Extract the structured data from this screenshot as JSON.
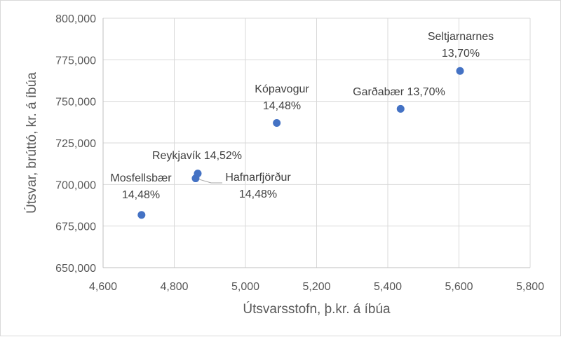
{
  "chart_data": {
    "type": "scatter",
    "xlabel": "Útsvarsstofn, þ.kr. á íbúa",
    "ylabel": "Útsvar, brúttó, kr. á íbúa",
    "xlim": [
      4600,
      5800
    ],
    "ylim": [
      650000,
      800000
    ],
    "xticks": [
      "4,600",
      "4,800",
      "5,000",
      "5,200",
      "5,400",
      "5,600",
      "5,800"
    ],
    "yticks": [
      "650,000",
      "675,000",
      "700,000",
      "725,000",
      "750,000",
      "775,000",
      "800,000"
    ],
    "grid": true,
    "marker_color": "#4472C4",
    "points": [
      {
        "label": [
          "Mosfellsbær",
          "14,48%"
        ],
        "x": 4708,
        "y": 681700
      },
      {
        "label": [
          "Hafnarfjörður",
          "14,48%"
        ],
        "x": 4860,
        "y": 703700
      },
      {
        "label": [
          "Reykjavík 14,52%"
        ],
        "x": 4866,
        "y": 706600
      },
      {
        "label": [
          "Kópavogur",
          "14,48%"
        ],
        "x": 5088,
        "y": 737000
      },
      {
        "label": [
          "Garðabær 13,70%"
        ],
        "x": 5436,
        "y": 745500
      },
      {
        "label": [
          "Seltjarnarnes",
          "13,70%"
        ],
        "x": 5603,
        "y": 768300
      }
    ]
  }
}
